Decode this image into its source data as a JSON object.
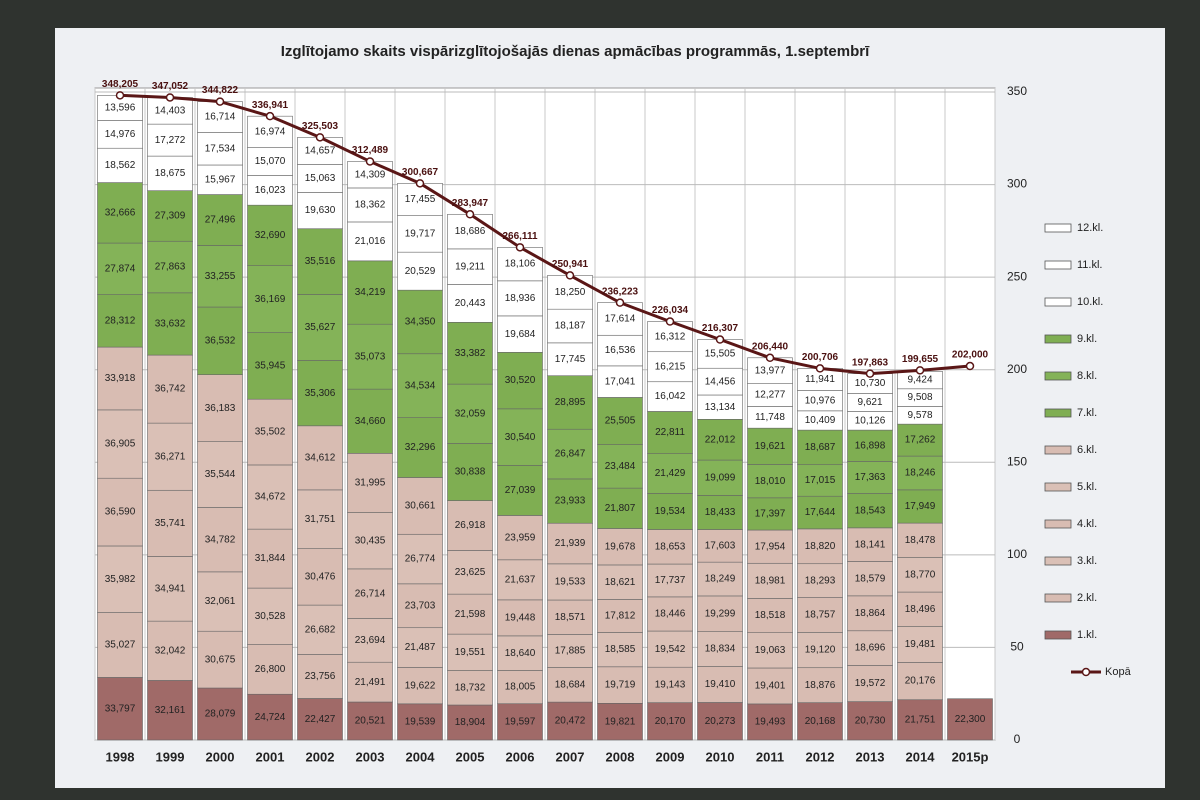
{
  "chart_data": {
    "type": "bar",
    "stacked": true,
    "title": "Izglītojamo skaits vispārizglītojošajās dienas apmācības programmās, 1.septembrī",
    "categories": [
      "1998",
      "1999",
      "2000",
      "2001",
      "2002",
      "2003",
      "2004",
      "2005",
      "2006",
      "2007",
      "2008",
      "2009",
      "2010",
      "2011",
      "2012",
      "2013",
      "2014",
      "2015p"
    ],
    "ylim": [
      0,
      350
    ],
    "yticks": [
      0,
      50,
      100,
      150,
      200,
      250,
      300,
      350
    ],
    "grid": true,
    "y_axis_side": "right",
    "legend": "right",
    "series": [
      {
        "name": "1.kl.",
        "color": "#a06a68",
        "values": [
          33.797,
          32.161,
          28.079,
          24.724,
          22.427,
          20.521,
          19.539,
          18.904,
          19.597,
          20.472,
          19.821,
          20.17,
          20.273,
          19.493,
          20.168,
          20.73,
          21.751,
          22.3
        ],
        "value_labels": [
          "33,797",
          "32,161",
          "28,079",
          "24,724",
          "22,427",
          "20,521",
          "19,539",
          "18,904",
          "19,597",
          "20,472",
          "19,821",
          "20,170",
          "20,273",
          "19,493",
          "20,168",
          "20,730",
          "21,751",
          "22,300"
        ]
      },
      {
        "name": "2.kl.",
        "color": "#d8bcb2",
        "values": [
          35.027,
          32.042,
          30.675,
          26.8,
          23.756,
          21.491,
          19.622,
          18.732,
          18.005,
          18.684,
          19.719,
          19.143,
          19.41,
          19.401,
          18.876,
          19.572,
          20.176,
          null
        ],
        "value_labels": [
          "35,027",
          "32,042",
          "30,675",
          "26,800",
          "23,756",
          "21,491",
          "19,622",
          "18,732",
          "18,005",
          "18,684",
          "19,719",
          "19,143",
          "19,410",
          "19,401",
          "18,876",
          "19,572",
          "20,176",
          null
        ]
      },
      {
        "name": "3.kl.",
        "color": "#dac0b6",
        "values": [
          35.982,
          34.941,
          32.061,
          30.528,
          26.682,
          23.694,
          21.487,
          19.551,
          18.64,
          17.885,
          18.585,
          19.542,
          18.834,
          19.063,
          19.12,
          18.696,
          19.481,
          null
        ],
        "value_labels": [
          "35,982",
          "34,941",
          "32,061",
          "30,528",
          "26,682",
          "23,694",
          "21,487",
          "19,551",
          "18,640",
          "17,885",
          "18,585",
          "19,542",
          "18,834",
          "19,063",
          "19,120",
          "18,696",
          "19,481",
          null
        ]
      },
      {
        "name": "4.kl.",
        "color": "#d8bcb2",
        "values": [
          36.59,
          35.741,
          34.782,
          31.844,
          30.476,
          26.714,
          23.703,
          21.598,
          19.448,
          18.571,
          17.812,
          18.446,
          19.299,
          18.518,
          18.757,
          18.864,
          18.496,
          null
        ],
        "value_labels": [
          "36,590",
          "35,741",
          "34,782",
          "31,844",
          "30,476",
          "26,714",
          "23,703",
          "21,598",
          "19,448",
          "18,571",
          "17,812",
          "18,446",
          "19,299",
          "18,518",
          "18,757",
          "18,864",
          "18,496",
          null
        ]
      },
      {
        "name": "5.kl.",
        "color": "#dac0b6",
        "values": [
          36.905,
          36.271,
          35.544,
          34.672,
          31.751,
          30.435,
          26.774,
          23.625,
          21.637,
          19.533,
          18.621,
          17.737,
          18.249,
          18.981,
          18.293,
          18.579,
          18.77,
          null
        ],
        "value_labels": [
          "36,905",
          "36,271",
          "35,544",
          "34,672",
          "31,751",
          "30,435",
          "26,774",
          "23,625",
          "21,637",
          "19,533",
          "18,621",
          "17,737",
          "18,249",
          "18,981",
          "18,293",
          "18,579",
          "18,770",
          null
        ]
      },
      {
        "name": "6.kl.",
        "color": "#d8bcb2",
        "values": [
          33.918,
          36.742,
          36.183,
          35.502,
          34.612,
          31.995,
          30.661,
          26.918,
          23.959,
          21.939,
          19.678,
          18.653,
          17.603,
          17.954,
          18.82,
          18.141,
          18.478,
          null
        ],
        "value_labels": [
          "33,918",
          "36,742",
          "36,183",
          "35,502",
          "34,612",
          "31,995",
          "30,661",
          "26,918",
          "23,959",
          "21,939",
          "19,678",
          "18,653",
          "17,603",
          "17,954",
          "18,820",
          "18,141",
          "18,478",
          null
        ]
      },
      {
        "name": "7.kl.",
        "color": "#7fae52",
        "values": [
          28.312,
          33.632,
          36.532,
          35.945,
          35.306,
          34.66,
          32.296,
          30.838,
          27.039,
          23.933,
          21.807,
          19.534,
          18.433,
          17.397,
          17.644,
          18.543,
          17.949,
          null
        ],
        "value_labels": [
          "28,312",
          "33,632",
          "36,532",
          "35,945",
          "35,306",
          "34,660",
          "32,296",
          "30,838",
          "27,039",
          "23,933",
          "21,807",
          "19,534",
          "18,433",
          "17,397",
          "17,644",
          "18,543",
          "17,949",
          null
        ]
      },
      {
        "name": "8.kl.",
        "color": "#84b358",
        "values": [
          27.874,
          27.863,
          33.255,
          36.169,
          35.627,
          35.073,
          34.534,
          32.059,
          30.54,
          26.847,
          23.484,
          21.429,
          19.099,
          18.01,
          17.015,
          17.363,
          18.246,
          null
        ],
        "value_labels": [
          "27,874",
          "27,863",
          "33,255",
          "36,169",
          "35,627",
          "35,073",
          "34,534",
          "32,059",
          "30,540",
          "26,847",
          "23,484",
          "21,429",
          "19,099",
          "18,010",
          "17,015",
          "17,363",
          "18,246",
          null
        ]
      },
      {
        "name": "9.kl.",
        "color": "#7fae52",
        "values": [
          32.666,
          27.309,
          27.496,
          32.69,
          35.516,
          34.219,
          34.35,
          33.382,
          30.52,
          28.895,
          25.505,
          22.811,
          22.012,
          19.621,
          18.687,
          16.898,
          17.262,
          null
        ],
        "value_labels": [
          "32,666",
          "27,309",
          "27,496",
          "32,690",
          "35,516",
          "34,219",
          "34,350",
          "33,382",
          "30,520",
          "28,895",
          "25,505",
          "22,811",
          "22,012",
          "19,621",
          "18,687",
          "16,898",
          "17,262",
          null
        ]
      },
      {
        "name": "10.kl.",
        "color": "#ffffff",
        "values": [
          18.562,
          18.675,
          15.967,
          16.023,
          19.63,
          21.016,
          20.529,
          20.443,
          19.684,
          17.745,
          17.041,
          16.042,
          13.134,
          11.748,
          10.409,
          10.126,
          9.578,
          null
        ],
        "value_labels": [
          "18,562",
          "18,675",
          "15,967",
          "16,023",
          "19,630",
          "21,016",
          "20,529",
          "20,443",
          "19,684",
          "17,745",
          "17,041",
          "16,042",
          "13,134",
          "11,748",
          "10,409",
          "10,126",
          "9,578",
          null
        ]
      },
      {
        "name": "11.kl.",
        "color": "#ffffff",
        "values": [
          14.976,
          17.272,
          17.534,
          15.07,
          15.063,
          18.362,
          19.717,
          19.211,
          18.936,
          18.187,
          16.536,
          16.215,
          14.456,
          12.277,
          10.976,
          9.621,
          9.508,
          null
        ],
        "value_labels": [
          "14,976",
          "17,272",
          "17,534",
          "15,070",
          "15,063",
          "18,362",
          "19,717",
          "19,211",
          "18,936",
          "18,187",
          "16,536",
          "16,215",
          "14,456",
          "12,277",
          "10,976",
          "9,621",
          "9,508",
          null
        ]
      },
      {
        "name": "12.kl.",
        "color": "#ffffff",
        "values": [
          13.596,
          14.403,
          16.714,
          16.974,
          14.657,
          14.309,
          17.455,
          18.686,
          18.106,
          18.25,
          17.614,
          16.312,
          15.505,
          13.977,
          11.941,
          10.73,
          9.424,
          null
        ],
        "value_labels": [
          "13,596",
          "14,403",
          "16,714",
          "16,974",
          "14,657",
          "14,309",
          "17,455",
          "18,686",
          "18,106",
          "18,250",
          "17,614",
          "16,312",
          "15,505",
          "13,977",
          "11,941",
          "10,730",
          "9,424",
          null
        ]
      }
    ],
    "line": {
      "name": "Kopā",
      "color": "#5a1616",
      "values": [
        348.205,
        347.052,
        344.822,
        336.941,
        325.503,
        312.489,
        300.667,
        283.947,
        266.111,
        250.941,
        236.223,
        226.034,
        216.307,
        206.44,
        200.706,
        197.863,
        199.655,
        202.0
      ],
      "value_labels": [
        "348,205",
        "347,052",
        "344,822",
        "336,941",
        "325,503",
        "312,489",
        "300,667",
        "283,947",
        "266,111",
        "250,941",
        "236,223",
        "226,034",
        "216,307",
        "206,440",
        "200,706",
        "197,863",
        "199,655",
        "202,000"
      ]
    }
  }
}
